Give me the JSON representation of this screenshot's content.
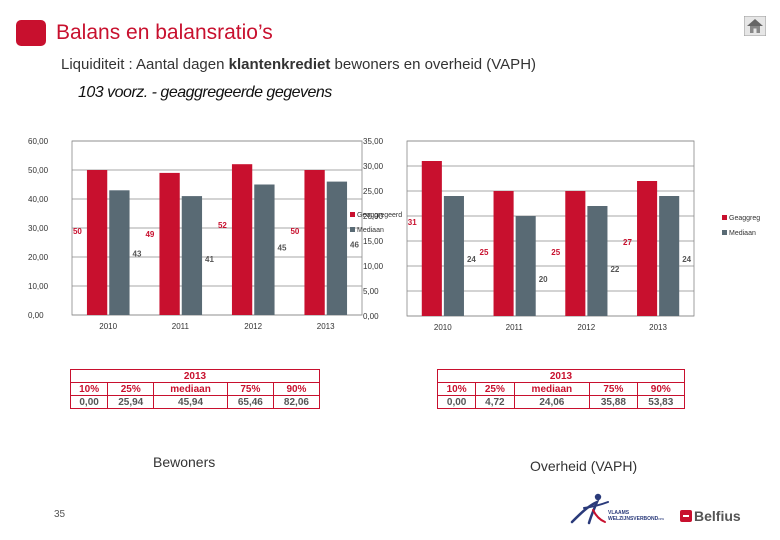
{
  "header": {
    "title": "Balans en balansratio’s",
    "subtitle_prefix": "Liquiditeit : Aantal dagen ",
    "subtitle_bold": "klantenkrediet",
    "subtitle_suffix": "  bewoners en overheid (VAPH)",
    "section_title": "103  voorz. - geaggregeerde gegevens",
    "home_icon": "home-icon"
  },
  "colors": {
    "accent": "#c8102e",
    "bar_red": "#c8102e",
    "bar_grey": "#596a74"
  },
  "chart_data": [
    {
      "type": "bar",
      "title": "Bewoners",
      "categories": [
        "2010",
        "2011",
        "2012",
        "2013"
      ],
      "series": [
        {
          "name": "Geaggregeerd",
          "values": [
            50,
            49,
            52,
            50
          ],
          "labels": [
            "50",
            "49",
            "52",
            "50"
          ]
        },
        {
          "name": "Mediaan",
          "values": [
            43,
            41,
            45,
            46
          ],
          "labels": [
            "43",
            "41",
            "45",
            "46"
          ]
        }
      ],
      "ylim": [
        0,
        60
      ],
      "yticks": [
        "0,00",
        "10,00",
        "20,00",
        "30,00",
        "40,00",
        "50,00",
        "60,00"
      ],
      "legend": [
        "Geaggregeerd",
        "Mediaan"
      ],
      "legend_position": "right",
      "grid": true
    },
    {
      "type": "bar",
      "title": "Overheid (VAPH)",
      "categories": [
        "2010",
        "2011",
        "2012",
        "2013"
      ],
      "series": [
        {
          "name": "Geaggregeerd",
          "values": [
            31,
            25,
            25,
            27
          ],
          "labels": [
            "31",
            "25",
            "25",
            "27"
          ]
        },
        {
          "name": "Mediaan",
          "values": [
            24,
            20,
            22,
            24
          ],
          "labels": [
            "24",
            "20",
            "22",
            "24"
          ]
        }
      ],
      "ylim": [
        0,
        35
      ],
      "yticks": [
        "0,00",
        "5,00",
        "10,00",
        "15,00",
        "20,00",
        "25,00",
        "30,00",
        "35,00"
      ],
      "legend": [
        "Geaggregeerd",
        "Mediaan"
      ],
      "legend_position": "right",
      "grid": true
    }
  ],
  "tables": [
    {
      "year": "2013",
      "headers": [
        "10%",
        "25%",
        "mediaan",
        "75%",
        "90%"
      ],
      "values": [
        "0,00",
        "25,94",
        "45,94",
        "65,46",
        "82,06"
      ]
    },
    {
      "year": "2013",
      "headers": [
        "10%",
        "25%",
        "mediaan",
        "75%",
        "90%"
      ],
      "values": [
        "0,00",
        "4,72",
        "24,06",
        "35,88",
        "53,83"
      ]
    }
  ],
  "captions": {
    "left": "Bewoners",
    "right": "Overheid (VAPH)"
  },
  "footer": {
    "page_number": "35",
    "vv_line1": "VLAAMS",
    "vv_line2": "WELZIJNSVERBOND",
    "vv_suffix": "vzw",
    "belfius": "Belfius"
  }
}
